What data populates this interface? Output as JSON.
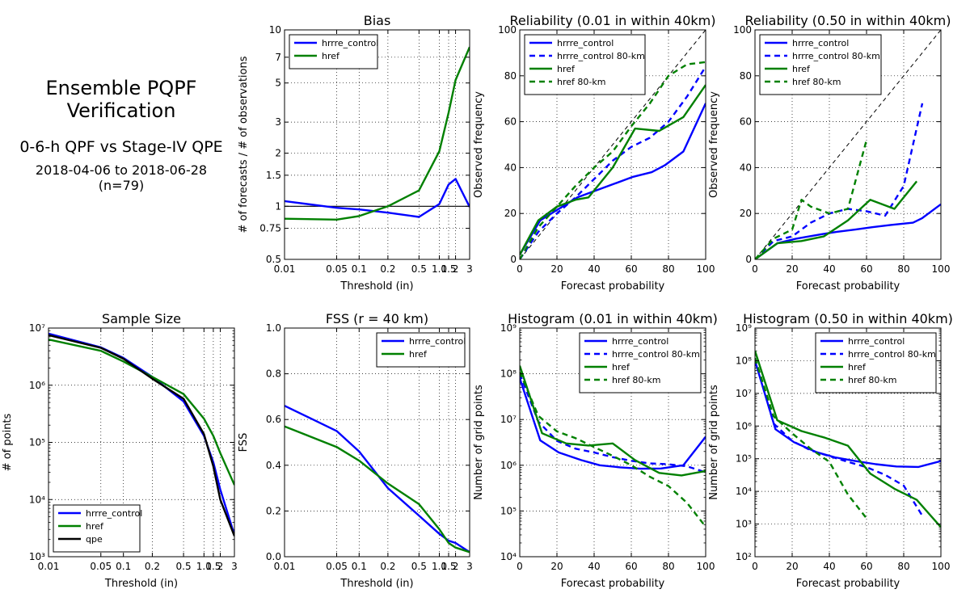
{
  "info": {
    "title": "Ensemble PQPF\nVerification",
    "subtitle": "0-6-h QPF vs Stage-IV QPE",
    "period": "2018-04-06 to 2018-06-28\n(n=79)"
  },
  "colors": {
    "hrrre_control": "#0000ff",
    "href": "#008000",
    "qpe": "#000000",
    "reference": "#000000"
  },
  "chart_data": [
    {
      "id": "bias",
      "type": "line",
      "title": "Bias",
      "xlabel": "Threshold (in)",
      "ylabel": "# of forecasts / # of observations",
      "xscale": "threshold",
      "yscale": "log",
      "xlim": [
        0.01,
        3
      ],
      "ylim": [
        0.5,
        10
      ],
      "xticks": [
        0.01,
        0.05,
        0.1,
        0.2,
        0.5,
        1.0,
        1.5,
        2,
        3
      ],
      "xticklabels": [
        "0.01",
        "0.05",
        "0.1",
        "0.2",
        "0.5",
        "1.0",
        "1.5",
        "2",
        "3"
      ],
      "yticks": [
        0.5,
        0.75,
        1,
        1.5,
        2,
        3,
        5,
        7,
        10
      ],
      "yticklabels": [
        "0.5",
        "0.75",
        "1",
        "1.5",
        "2",
        "3",
        "5",
        "7",
        "10"
      ],
      "grid": true,
      "legend": "top-left",
      "hline": 1,
      "series": [
        {
          "name": "hrrre_control",
          "color": "#0000ff",
          "dash": false,
          "x": [
            0.01,
            0.05,
            0.1,
            0.2,
            0.5,
            1.0,
            1.5,
            2,
            3
          ],
          "y": [
            1.07,
            0.98,
            0.96,
            0.92,
            0.87,
            1.03,
            1.33,
            1.43,
            0.99
          ]
        },
        {
          "name": "href",
          "color": "#008000",
          "dash": false,
          "x": [
            0.01,
            0.05,
            0.1,
            0.2,
            0.5,
            1.0,
            1.5,
            2,
            3
          ],
          "y": [
            0.85,
            0.84,
            0.88,
            1.0,
            1.23,
            2.05,
            3.4,
            5.2,
            8.0
          ]
        }
      ]
    },
    {
      "id": "rel001",
      "type": "line",
      "title": "Reliability (0.01 in within 40km)",
      "xlabel": "Forecast probability",
      "ylabel": "Observed frequency",
      "xscale": "linear",
      "yscale": "linear",
      "xlim": [
        0,
        100
      ],
      "ylim": [
        0,
        100
      ],
      "xticks": [
        0,
        20,
        40,
        60,
        80,
        100
      ],
      "xticklabels": [
        "0",
        "20",
        "40",
        "60",
        "80",
        "100"
      ],
      "yticks": [
        0,
        20,
        40,
        60,
        80,
        100
      ],
      "yticklabels": [
        "0",
        "20",
        "40",
        "60",
        "80",
        "100"
      ],
      "grid": true,
      "legend": "top-left",
      "diagonal": true,
      "series": [
        {
          "name": "hrrre_control",
          "color": "#0000ff",
          "dash": false,
          "x": [
            0,
            11,
            21,
            31,
            41,
            51,
            61,
            71,
            78,
            88,
            100
          ],
          "y": [
            2,
            17,
            22,
            27,
            30,
            33,
            36,
            38,
            41,
            47,
            68
          ]
        },
        {
          "name": "hrrre_control 80-km",
          "color": "#0000ff",
          "dash": true,
          "x": [
            0,
            10,
            20,
            30,
            40,
            50,
            60,
            70,
            80,
            90,
            100
          ],
          "y": [
            0,
            12,
            20,
            27,
            35,
            43,
            49,
            53,
            60,
            71,
            84
          ]
        },
        {
          "name": "href",
          "color": "#008000",
          "dash": false,
          "x": [
            0,
            10,
            20,
            30,
            37,
            50,
            62,
            75,
            88,
            100
          ],
          "y": [
            2,
            17,
            23,
            26,
            27,
            40,
            57,
            56,
            62,
            76
          ]
        },
        {
          "name": "href 80-km",
          "color": "#008000",
          "dash": true,
          "x": [
            0,
            10,
            20,
            30,
            40,
            50,
            60,
            70,
            80,
            90,
            100
          ],
          "y": [
            0,
            14,
            23,
            32,
            40,
            47,
            58,
            68,
            80,
            85,
            86
          ]
        }
      ]
    },
    {
      "id": "rel050",
      "type": "line",
      "title": "Reliability (0.50 in within 40km)",
      "xlabel": "Forecast probability",
      "ylabel": "Observed frequency",
      "xscale": "linear",
      "yscale": "linear",
      "xlim": [
        0,
        100
      ],
      "ylim": [
        0,
        100
      ],
      "xticks": [
        0,
        20,
        40,
        60,
        80,
        100
      ],
      "xticklabels": [
        "0",
        "20",
        "40",
        "60",
        "80",
        "100"
      ],
      "yticks": [
        0,
        20,
        40,
        60,
        80,
        100
      ],
      "yticklabels": [
        "0",
        "20",
        "40",
        "60",
        "80",
        "100"
      ],
      "grid": true,
      "legend": "top-left",
      "diagonal": true,
      "series": [
        {
          "name": "hrrre_control",
          "color": "#0000ff",
          "dash": false,
          "x": [
            0,
            12,
            22,
            36,
            44,
            54,
            63,
            73,
            85,
            90,
            100
          ],
          "y": [
            0,
            7,
            9,
            11,
            12,
            13,
            14,
            15,
            16,
            18,
            24
          ]
        },
        {
          "name": "hrrre_control 80-km",
          "color": "#0000ff",
          "dash": true,
          "x": [
            0,
            10,
            20,
            30,
            40,
            50,
            60,
            70,
            80,
            90
          ],
          "y": [
            0,
            8,
            10,
            16,
            20,
            22,
            21,
            19,
            32,
            68
          ]
        },
        {
          "name": "href",
          "color": "#008000",
          "dash": false,
          "x": [
            0,
            12,
            25,
            37,
            50,
            62,
            75,
            87
          ],
          "y": [
            0,
            7,
            8,
            10,
            17,
            26,
            22,
            34
          ]
        },
        {
          "name": "href 80-km",
          "color": "#008000",
          "dash": true,
          "x": [
            0,
            10,
            20,
            25,
            30,
            40,
            50,
            60
          ],
          "y": [
            0,
            9,
            13,
            26,
            23,
            20,
            22,
            52
          ]
        }
      ]
    },
    {
      "id": "sample",
      "type": "line",
      "title": "Sample Size",
      "xlabel": "Threshold (in)",
      "ylabel": "# of points",
      "xscale": "threshold",
      "yscale": "log",
      "xlim": [
        0.01,
        3
      ],
      "ylim": [
        1000,
        10000000
      ],
      "xticks": [
        0.01,
        0.05,
        0.1,
        0.2,
        0.5,
        1.0,
        1.5,
        2,
        3
      ],
      "xticklabels": [
        "0.01",
        "0.05",
        "0.1",
        "0.2",
        "0.5",
        "1.0",
        "1.5",
        "2",
        "3"
      ],
      "yticks": [
        1000,
        10000,
        100000,
        1000000,
        10000000
      ],
      "yticklabels": [
        "10³",
        "10⁴",
        "10⁵",
        "10⁶",
        "10⁷"
      ],
      "grid": true,
      "legend": "bottom-left",
      "series": [
        {
          "name": "hrrre_control",
          "color": "#0000ff",
          "dash": false,
          "x": [
            0.01,
            0.05,
            0.1,
            0.2,
            0.5,
            1.0,
            1.5,
            2,
            3
          ],
          "y": [
            8000000,
            4600000,
            3000000,
            1400000,
            520000,
            130000,
            45000,
            15000,
            2400
          ]
        },
        {
          "name": "href",
          "color": "#008000",
          "dash": false,
          "x": [
            0.01,
            0.05,
            0.1,
            0.2,
            0.5,
            1.0,
            1.5,
            2,
            3
          ],
          "y": [
            6300000,
            4000000,
            2600000,
            1400000,
            700000,
            260000,
            130000,
            65000,
            18000
          ]
        },
        {
          "name": "qpe",
          "color": "#000000",
          "dash": false,
          "x": [
            0.01,
            0.05,
            0.1,
            0.2,
            0.5,
            1.0,
            1.5,
            2,
            3
          ],
          "y": [
            7500000,
            4500000,
            2900000,
            1300000,
            580000,
            140000,
            38000,
            10000,
            2300
          ]
        }
      ]
    },
    {
      "id": "fss",
      "type": "line",
      "title": "FSS (r = 40 km)",
      "xlabel": "Threshold (in)",
      "ylabel": "FSS",
      "xscale": "threshold",
      "yscale": "linear",
      "xlim": [
        0.01,
        3
      ],
      "ylim": [
        0,
        1
      ],
      "xticks": [
        0.01,
        0.05,
        0.1,
        0.2,
        0.5,
        1.0,
        1.5,
        2,
        3
      ],
      "xticklabels": [
        "0.01",
        "0.05",
        "0.1",
        "0.2",
        "0.5",
        "1.0",
        "1.5",
        "2",
        "3"
      ],
      "yticks": [
        0,
        0.2,
        0.4,
        0.6,
        0.8,
        1.0
      ],
      "yticklabels": [
        "0.0",
        "0.2",
        "0.4",
        "0.6",
        "0.8",
        "1.0"
      ],
      "grid": true,
      "legend": "top-right",
      "series": [
        {
          "name": "hrrre_control",
          "color": "#0000ff",
          "dash": false,
          "x": [
            0.01,
            0.05,
            0.1,
            0.2,
            0.5,
            1.0,
            1.5,
            2,
            3
          ],
          "y": [
            0.66,
            0.55,
            0.46,
            0.3,
            0.18,
            0.1,
            0.07,
            0.06,
            0.02
          ]
        },
        {
          "name": "href",
          "color": "#008000",
          "dash": false,
          "x": [
            0.01,
            0.05,
            0.1,
            0.2,
            0.5,
            1.0,
            1.5,
            2,
            3
          ],
          "y": [
            0.57,
            0.48,
            0.42,
            0.32,
            0.23,
            0.12,
            0.06,
            0.04,
            0.02
          ]
        }
      ]
    },
    {
      "id": "hist001",
      "type": "line",
      "title": "Histogram (0.01 in within 40km)",
      "xlabel": "Forecast probability",
      "ylabel": "Number of grid points",
      "xscale": "linear",
      "yscale": "log",
      "xlim": [
        0,
        100
      ],
      "ylim": [
        10000,
        1000000000
      ],
      "xticks": [
        0,
        20,
        40,
        60,
        80,
        100
      ],
      "xticklabels": [
        "0",
        "20",
        "40",
        "60",
        "80",
        "100"
      ],
      "yticks": [
        10000,
        100000,
        1000000,
        10000000,
        100000000,
        1000000000
      ],
      "yticklabels": [
        "10⁴",
        "10⁵",
        "10⁶",
        "10⁷",
        "10⁸",
        "10⁹"
      ],
      "grid": true,
      "legend": "top-right",
      "series": [
        {
          "name": "hrrre_control",
          "color": "#0000ff",
          "dash": false,
          "x": [
            0,
            11,
            21,
            33,
            43,
            54,
            65,
            76,
            88,
            100
          ],
          "y": [
            80000000,
            3500000,
            1900000,
            1300000,
            1000000,
            900000,
            840000,
            850000,
            1000000,
            4200000
          ]
        },
        {
          "name": "hrrre_control 80-km",
          "color": "#0000ff",
          "dash": true,
          "x": [
            0,
            10,
            20,
            30,
            40,
            50,
            60,
            70,
            80,
            90,
            100
          ],
          "y": [
            100000000,
            9000000,
            3400000,
            2300000,
            1900000,
            1500000,
            1250000,
            1100000,
            1050000,
            950000,
            700000
          ]
        },
        {
          "name": "href",
          "color": "#008000",
          "dash": false,
          "x": [
            0,
            12,
            25,
            37,
            50,
            62,
            75,
            87,
            100
          ],
          "y": [
            150000000,
            5000000,
            3000000,
            2700000,
            3000000,
            1300000,
            680000,
            600000,
            750000
          ]
        },
        {
          "name": "href 80-km",
          "color": "#008000",
          "dash": true,
          "x": [
            0,
            10,
            20,
            30,
            40,
            50,
            60,
            70,
            80,
            90,
            100
          ],
          "y": [
            110000000,
            12000000,
            5500000,
            3900000,
            2500000,
            1600000,
            1000000,
            560000,
            350000,
            150000,
            45000
          ]
        }
      ]
    },
    {
      "id": "hist050",
      "type": "line",
      "title": "Histogram (0.50 in within 40km)",
      "xlabel": "Forecast probability",
      "ylabel": "Number of grid points",
      "xscale": "linear",
      "yscale": "log",
      "xlim": [
        0,
        100
      ],
      "ylim": [
        100,
        1000000000
      ],
      "xticks": [
        0,
        20,
        40,
        60,
        80,
        100
      ],
      "xticklabels": [
        "0",
        "20",
        "40",
        "60",
        "80",
        "100"
      ],
      "yticks": [
        100,
        1000,
        10000,
        100000,
        1000000,
        10000000,
        100000000,
        1000000000
      ],
      "yticklabels": [
        "10²",
        "10³",
        "10⁴",
        "10⁵",
        "10⁶",
        "10⁷",
        "10⁸",
        "10⁹"
      ],
      "grid": true,
      "legend": "top-right",
      "series": [
        {
          "name": "hrrre_control",
          "color": "#0000ff",
          "dash": false,
          "x": [
            0,
            11,
            21,
            33,
            43,
            54,
            65,
            76,
            88,
            100
          ],
          "y": [
            100000000,
            800000,
            320000,
            160000,
            110000,
            85000,
            68000,
            58000,
            56000,
            85000
          ]
        },
        {
          "name": "hrrre_control 80-km",
          "color": "#0000ff",
          "dash": true,
          "x": [
            0,
            10,
            20,
            30,
            40,
            50,
            60,
            70,
            80,
            90
          ],
          "y": [
            120000000,
            1200000,
            350000,
            180000,
            120000,
            80000,
            55000,
            32000,
            15000,
            1800
          ]
        },
        {
          "name": "href",
          "color": "#008000",
          "dash": false,
          "x": [
            0,
            12,
            25,
            37,
            50,
            62,
            75,
            87,
            100
          ],
          "y": [
            200000000,
            1500000,
            700000,
            450000,
            250000,
            35000,
            12000,
            5500,
            800
          ]
        },
        {
          "name": "href 80-km",
          "color": "#008000",
          "dash": true,
          "x": [
            0,
            10,
            20,
            30,
            40,
            50,
            60
          ],
          "y": [
            120000000,
            2000000,
            600000,
            200000,
            80000,
            8000,
            1500
          ]
        }
      ]
    }
  ]
}
